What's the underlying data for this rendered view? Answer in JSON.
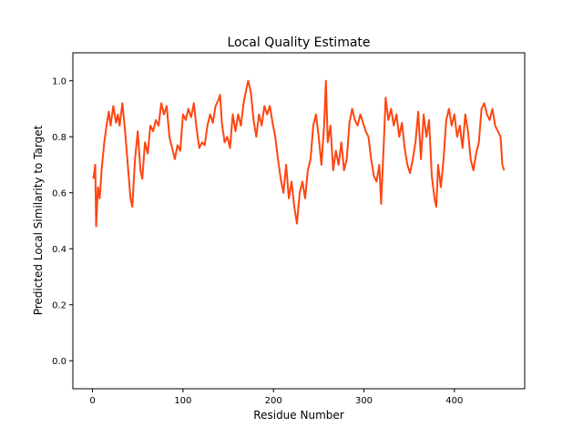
{
  "chart_data": {
    "type": "line",
    "title": "Local Quality Estimate",
    "x_label": "Residue Number",
    "y_label": "Predicted Local Similarity to Target",
    "xlim": [
      -21.7,
      477.7
    ],
    "ylim": [
      -0.1,
      1.1
    ],
    "xticks": [
      0,
      100,
      200,
      300,
      400
    ],
    "yticks": [
      {
        "value": 0,
        "label": "0.0"
      },
      0.2,
      0.4,
      0.6,
      0.8,
      {
        "value": 1,
        "label": "1.0"
      }
    ],
    "color": "#ff4511",
    "x": [
      1,
      3,
      4,
      6,
      8,
      10,
      13,
      16,
      18,
      20,
      23,
      26,
      28,
      30,
      33,
      36,
      39,
      42,
      44,
      47,
      50,
      53,
      55,
      58,
      61,
      64,
      67,
      70,
      73,
      76,
      79,
      82,
      85,
      88,
      91,
      94,
      97,
      100,
      103,
      106,
      109,
      112,
      115,
      118,
      121,
      124,
      127,
      130,
      133,
      136,
      139,
      141,
      143,
      146,
      149,
      152,
      155,
      158,
      161,
      164,
      167,
      170,
      172,
      175,
      178,
      181,
      184,
      187,
      190,
      193,
      196,
      199,
      202,
      205,
      208,
      211,
      214,
      217,
      220,
      223,
      226,
      229,
      232,
      235,
      238,
      241,
      244,
      247,
      250,
      253,
      256,
      258,
      260,
      263,
      266,
      269,
      272,
      275,
      278,
      281,
      284,
      287,
      290,
      293,
      296,
      299,
      302,
      305,
      308,
      311,
      314,
      317,
      319,
      322,
      324,
      327,
      330,
      333,
      336,
      339,
      342,
      345,
      348,
      351,
      354,
      357,
      360,
      363,
      366,
      369,
      372,
      375,
      378,
      380,
      382,
      385,
      388,
      391,
      394,
      397,
      400,
      403,
      406,
      409,
      412,
      415,
      418,
      421,
      424,
      427,
      430,
      433,
      436,
      439,
      442,
      445,
      448,
      451,
      453,
      455
    ],
    "values": [
      0.65,
      0.7,
      0.48,
      0.62,
      0.58,
      0.68,
      0.78,
      0.85,
      0.89,
      0.84,
      0.91,
      0.85,
      0.88,
      0.84,
      0.92,
      0.82,
      0.7,
      0.58,
      0.55,
      0.72,
      0.82,
      0.68,
      0.65,
      0.78,
      0.74,
      0.84,
      0.82,
      0.86,
      0.84,
      0.92,
      0.88,
      0.91,
      0.8,
      0.76,
      0.72,
      0.77,
      0.75,
      0.88,
      0.86,
      0.9,
      0.87,
      0.92,
      0.83,
      0.76,
      0.78,
      0.77,
      0.84,
      0.88,
      0.85,
      0.91,
      0.93,
      0.95,
      0.85,
      0.78,
      0.8,
      0.76,
      0.88,
      0.82,
      0.88,
      0.84,
      0.92,
      0.97,
      1.0,
      0.96,
      0.86,
      0.8,
      0.88,
      0.84,
      0.91,
      0.88,
      0.91,
      0.85,
      0.8,
      0.72,
      0.65,
      0.6,
      0.7,
      0.58,
      0.64,
      0.55,
      0.49,
      0.6,
      0.64,
      0.58,
      0.68,
      0.72,
      0.84,
      0.88,
      0.8,
      0.7,
      0.84,
      1.0,
      0.78,
      0.84,
      0.68,
      0.75,
      0.7,
      0.78,
      0.68,
      0.72,
      0.85,
      0.9,
      0.86,
      0.84,
      0.88,
      0.85,
      0.82,
      0.8,
      0.72,
      0.66,
      0.64,
      0.7,
      0.56,
      0.78,
      0.94,
      0.86,
      0.9,
      0.84,
      0.88,
      0.8,
      0.85,
      0.76,
      0.7,
      0.67,
      0.72,
      0.78,
      0.89,
      0.72,
      0.88,
      0.8,
      0.86,
      0.66,
      0.58,
      0.55,
      0.7,
      0.62,
      0.72,
      0.86,
      0.9,
      0.84,
      0.88,
      0.8,
      0.84,
      0.76,
      0.88,
      0.82,
      0.72,
      0.68,
      0.74,
      0.78,
      0.9,
      0.92,
      0.88,
      0.86,
      0.9,
      0.84,
      0.82,
      0.8,
      0.7,
      0.68
    ]
  }
}
